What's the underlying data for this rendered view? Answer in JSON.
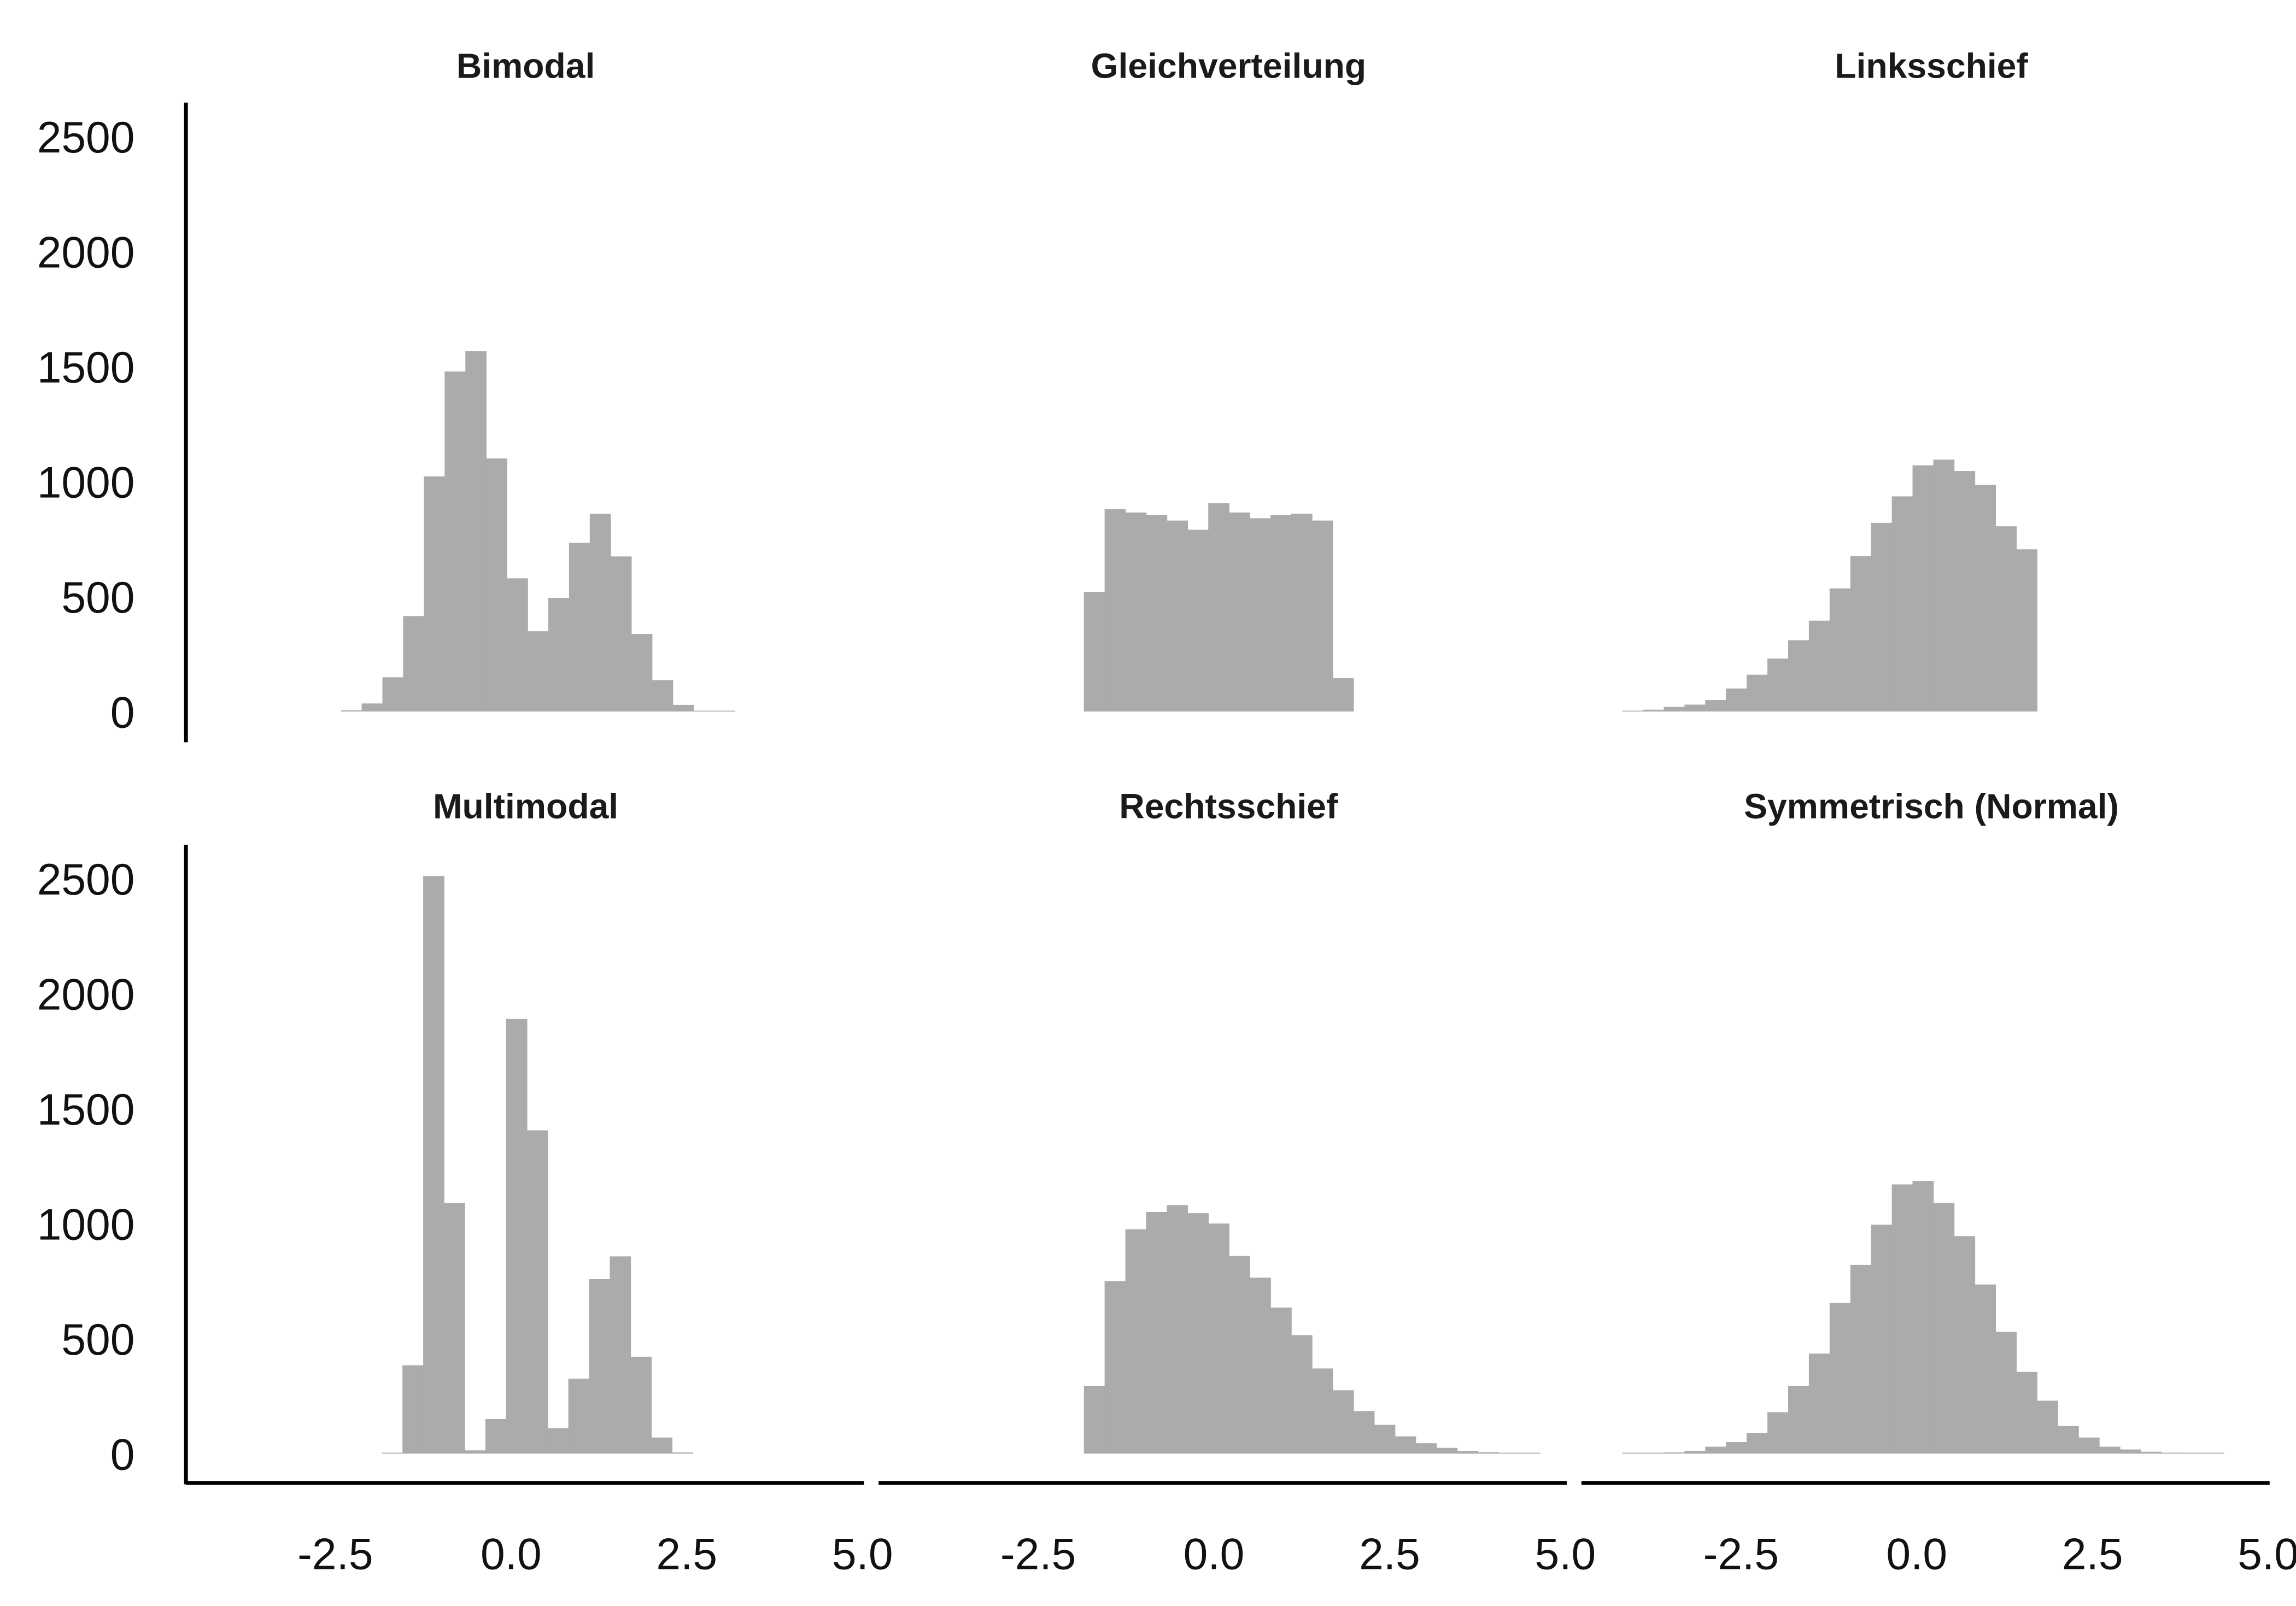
{
  "chart_data": {
    "type": "bar",
    "subtype": "faceted-histogram",
    "xlabel": "",
    "ylabel": "",
    "xlim": [
      -4.5,
      5.0
    ],
    "ylim": [
      0,
      2600
    ],
    "x_ticks": [
      "-2.5",
      "0.0",
      "2.5",
      "5.0"
    ],
    "x_tick_values": [
      -2.5,
      0,
      2.5,
      5.0
    ],
    "y_ticks": [
      "0",
      "500",
      "1000",
      "1500",
      "2000",
      "2500"
    ],
    "y_tick_values": [
      0,
      500,
      1000,
      1500,
      2000,
      2500
    ],
    "bin_width": 0.295,
    "bar_color": "#ababab",
    "grid": false,
    "panels": [
      {
        "title": "Bimodal",
        "x_start": -2.42,
        "values": [
          5,
          35,
          149,
          415,
          1022,
          1478,
          1567,
          1100,
          579,
          349,
          494,
          733,
          859,
          674,
          337,
          136,
          29,
          3,
          1
        ]
      },
      {
        "title": "Gleichverteilung",
        "x_start": -1.85,
        "values": [
          520,
          880,
          865,
          855,
          830,
          790,
          905,
          865,
          840,
          855,
          860,
          830,
          145
        ]
      },
      {
        "title": "Linksschief",
        "x_start": -4.19,
        "values": [
          3,
          8,
          20,
          30,
          50,
          100,
          160,
          230,
          310,
          395,
          535,
          675,
          820,
          935,
          1070,
          1095,
          1045,
          985,
          805,
          705
        ]
      },
      {
        "title": "Multimodal",
        "x_start": -1.84,
        "values": [
          3,
          384,
          2510,
          1089,
          14,
          150,
          1889,
          1405,
          111,
          326,
          758,
          857,
          421,
          70,
          5
        ]
      },
      {
        "title": "Rechtsschief",
        "x_start": -1.85,
        "values": [
          295,
          750,
          975,
          1050,
          1080,
          1045,
          1000,
          860,
          765,
          635,
          515,
          370,
          275,
          185,
          125,
          75,
          45,
          25,
          12,
          6,
          3,
          2
        ]
      },
      {
        "title": "Symmetrisch (Normal)",
        "x_start": -4.19,
        "values": [
          1,
          2,
          5,
          12,
          30,
          50,
          90,
          180,
          295,
          435,
          655,
          820,
          995,
          1170,
          1185,
          1090,
          945,
          735,
          530,
          355,
          230,
          120,
          70,
          30,
          18,
          8,
          4,
          2,
          1
        ]
      }
    ]
  }
}
